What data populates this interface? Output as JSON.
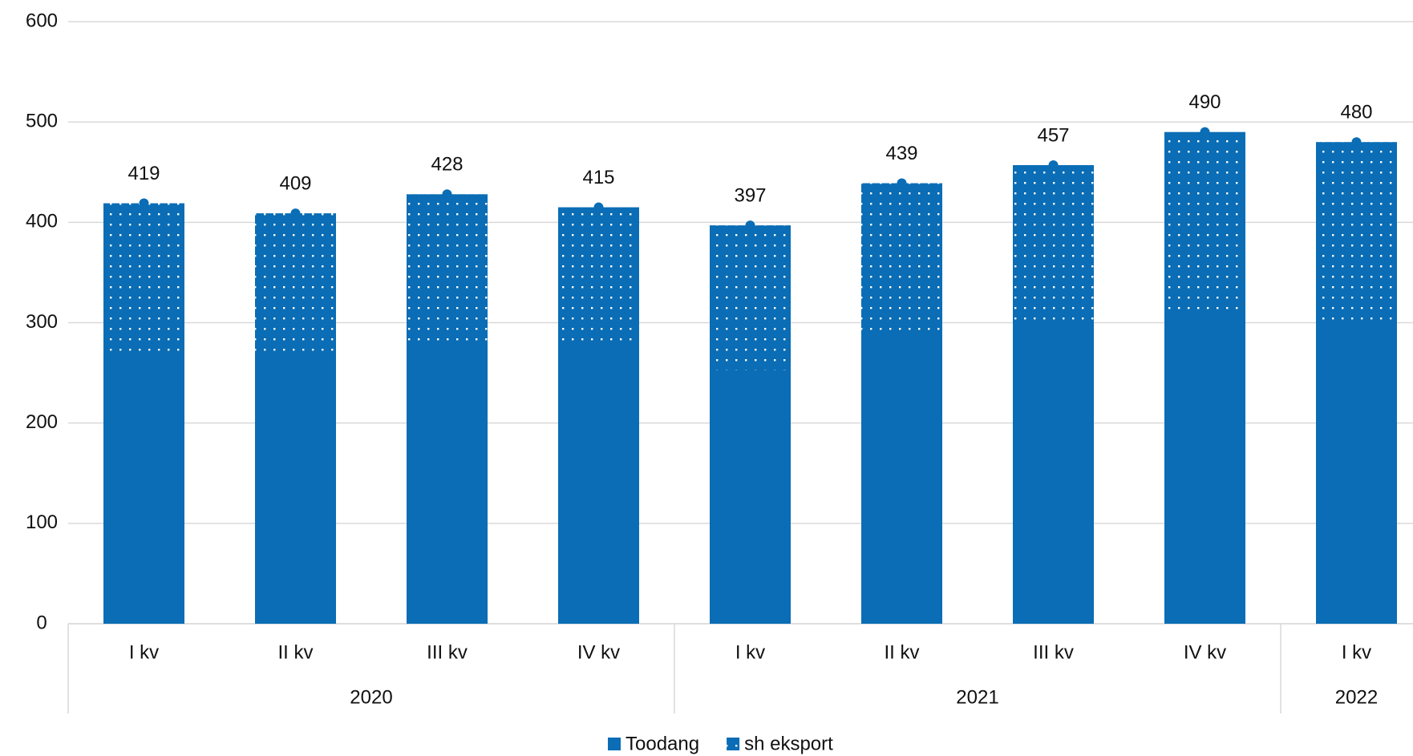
{
  "chart_data": {
    "type": "bar",
    "categories": [
      "I kv",
      "II kv",
      "III kv",
      "IV kv",
      "I kv",
      "II kv",
      "III kv",
      "IV kv",
      "I kv"
    ],
    "x_groups": [
      "2020",
      "2020",
      "2020",
      "2020",
      "2021",
      "2021",
      "2021",
      "2021",
      "2022"
    ],
    "series": [
      {
        "name": "Toodang",
        "color": "#0a6db5",
        "values": [
          419,
          409,
          428,
          415,
          397,
          439,
          457,
          490,
          480
        ]
      },
      {
        "name": "sh eksport",
        "color": "#0a6db5",
        "pattern": "dots",
        "values": [
          149,
          141,
          148,
          141,
          144,
          154,
          160,
          177,
          179
        ]
      }
    ],
    "ylim": [
      0,
      600
    ],
    "yticks": [
      0,
      100,
      200,
      300,
      400,
      500,
      600
    ],
    "grid": true,
    "legend": "bottom"
  }
}
